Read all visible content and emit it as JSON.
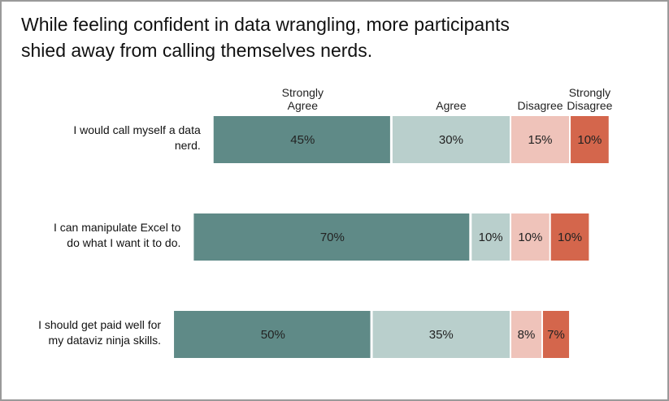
{
  "chart_data": {
    "type": "bar",
    "orientation": "horizontal",
    "stacked": "diverging",
    "title": "While feeling confident in data wrangling, more participants\nshied away from calling themselves nerds.",
    "categories": [
      [
        "I would call myself a data",
        "nerd."
      ],
      [
        "I can manipulate Excel to",
        "do what I want it to do."
      ],
      [
        "I should get paid well for",
        "my dataviz ninja skills."
      ]
    ],
    "series": [
      {
        "name": [
          "Strongly",
          "Agree"
        ],
        "values": [
          45,
          70,
          50
        ],
        "labels": [
          "45%",
          "70%",
          "50%"
        ],
        "color": "#5f8a87"
      },
      {
        "name": [
          "Agree"
        ],
        "values": [
          30,
          10,
          35
        ],
        "labels": [
          "30%",
          "10%",
          "35%"
        ],
        "color": "#b9cfcc"
      },
      {
        "name": [
          "Disagree"
        ],
        "values": [
          15,
          10,
          8
        ],
        "labels": [
          "15%",
          "10%",
          "8%"
        ],
        "color": "#efc3ba"
      },
      {
        "name": [
          "Strongly",
          "Disagree"
        ],
        "values": [
          10,
          10,
          7
        ],
        "labels": [
          "10%",
          "10%",
          "7%"
        ],
        "color": "#d4664c"
      }
    ],
    "legend_position": "top",
    "grid": false
  }
}
